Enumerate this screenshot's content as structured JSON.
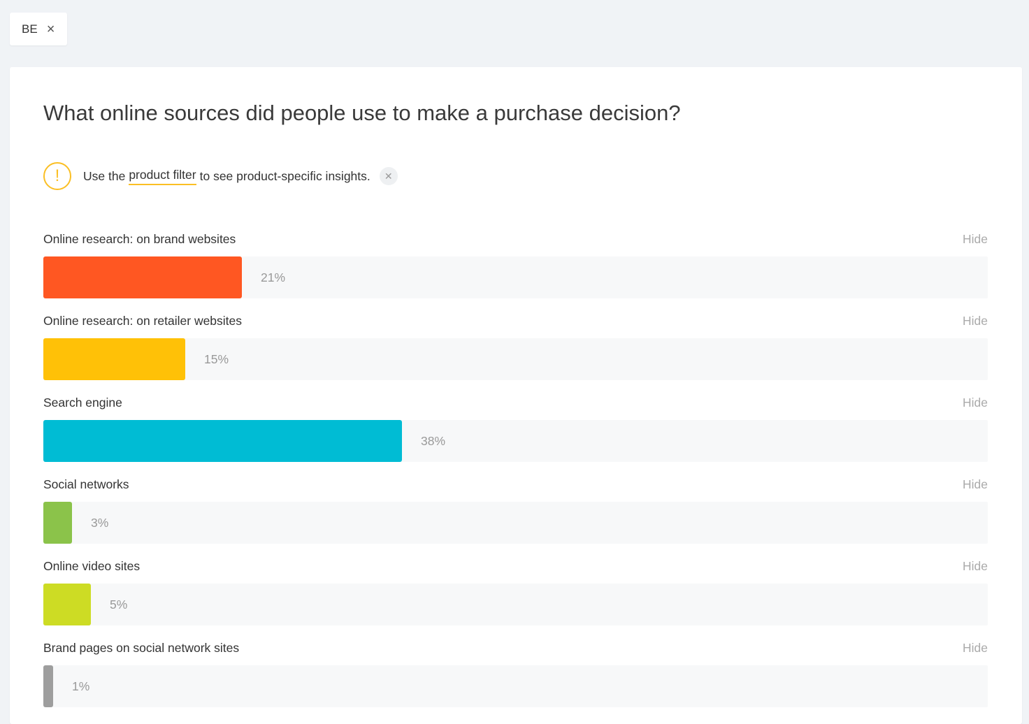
{
  "filter_chip": {
    "label": "BE"
  },
  "card": {
    "title": "What online sources did people use to make a purchase decision?",
    "notice": {
      "text_before": "Use the",
      "link_text": "product filter",
      "text_after": "to see product-specific insights."
    },
    "hide_label": "Hide"
  },
  "colors": {
    "orange": "#ff5722",
    "amber": "#ffc107",
    "cyan": "#00bcd4",
    "green": "#8bc34a",
    "lime": "#cddc24",
    "grey": "#9e9e9e",
    "warning": "#fbbf24"
  },
  "chart_data": {
    "type": "bar",
    "orientation": "horizontal",
    "categories": [
      "Online research: on brand websites",
      "Online research: on retailer websites",
      "Search engine",
      "Social networks",
      "Online video sites",
      "Brand pages on social network sites"
    ],
    "values": [
      21,
      15,
      38,
      3,
      5,
      1
    ],
    "value_labels": [
      "21%",
      "15%",
      "38%",
      "3%",
      "5%",
      "1%"
    ],
    "colors": [
      "#ff5722",
      "#ffc107",
      "#00bcd4",
      "#8bc34a",
      "#cddc24",
      "#9e9e9e"
    ],
    "xlim": [
      0,
      100
    ],
    "title": "",
    "xlabel": "",
    "ylabel": ""
  }
}
